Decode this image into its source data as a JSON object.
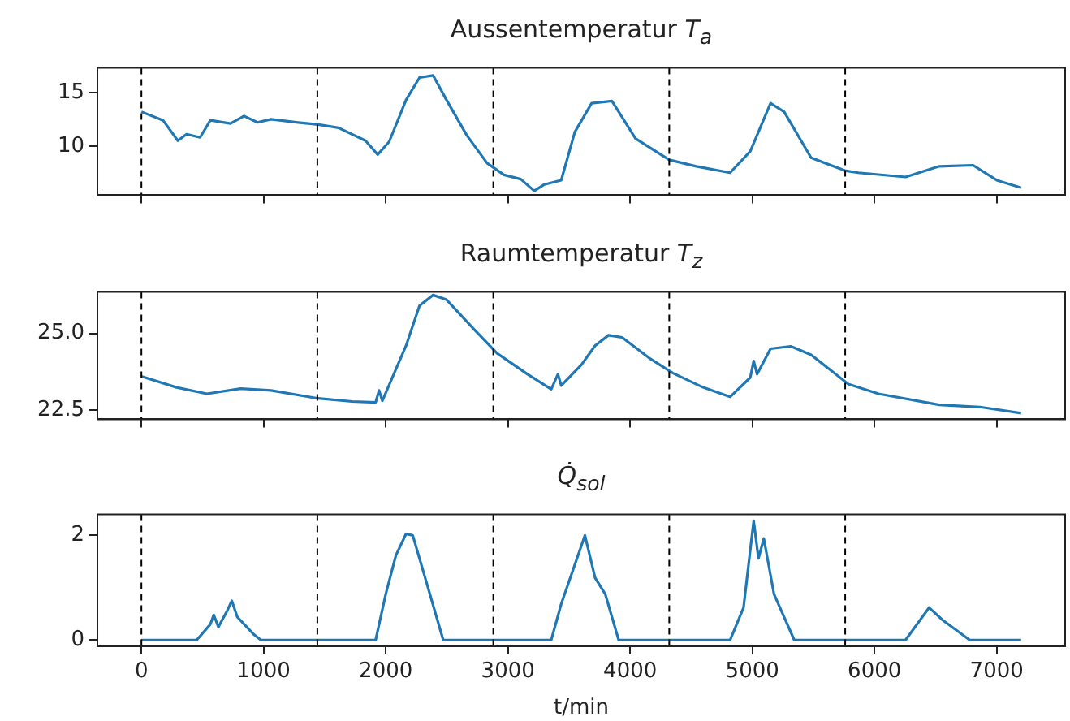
{
  "chart_data": [
    {
      "type": "line",
      "title": "Aussentemperatur T$_{a}$",
      "tick_labels": "y",
      "grid": false,
      "line_style": "solid",
      "xlim": [
        -360,
        7560
      ],
      "xticks": [
        0,
        1000,
        2000,
        3000,
        4000,
        5000,
        6000,
        7000
      ],
      "ylim": [
        5.4,
        17.3
      ],
      "yticks": [
        10,
        15
      ],
      "x": [
        0,
        177,
        298,
        370,
        480,
        564,
        729,
        840,
        950,
        1061,
        1282,
        1448,
        1613,
        1834,
        1934,
        2028,
        2166,
        2276,
        2387,
        2497,
        2663,
        2829,
        2967,
        3105,
        3215,
        3298,
        3436,
        3547,
        3685,
        3851,
        4044,
        4320,
        4541,
        4818,
        4983,
        5149,
        5260,
        5481,
        5757,
        5867,
        6254,
        6530,
        6807,
        7000,
        7200
      ],
      "series": [
        {
          "color": "#1f77b4",
          "values": [
            13.2,
            12.4,
            10.5,
            11.1,
            10.8,
            12.4,
            12.1,
            12.8,
            12.2,
            12.5,
            12.2,
            12.0,
            11.7,
            10.5,
            9.2,
            10.4,
            14.3,
            16.4,
            16.6,
            14.3,
            11.0,
            8.4,
            7.3,
            6.9,
            5.8,
            6.4,
            6.8,
            11.3,
            14.0,
            14.2,
            10.7,
            8.7,
            8.1,
            7.5,
            9.5,
            14.0,
            13.2,
            8.9,
            7.7,
            7.5,
            7.1,
            8.1,
            8.2,
            6.8,
            6.1
          ]
        }
      ],
      "ref_lines": [
        {
          "axis": "x",
          "value": 0,
          "color": "#000000",
          "line_style": "dashed"
        },
        {
          "axis": "x",
          "value": 1440,
          "color": "#000000",
          "line_style": "dashed"
        },
        {
          "axis": "x",
          "value": 2880,
          "color": "#000000",
          "line_style": "dashed"
        },
        {
          "axis": "x",
          "value": 4320,
          "color": "#000000",
          "line_style": "dashed"
        },
        {
          "axis": "x",
          "value": 5760,
          "color": "#000000",
          "line_style": "dashed"
        }
      ]
    },
    {
      "type": "line",
      "title": "Raumtemperatur T$_{z}$",
      "tick_labels": "y",
      "grid": false,
      "line_style": "solid",
      "xlim": [
        -360,
        7560
      ],
      "xticks": [
        0,
        1000,
        2000,
        3000,
        4000,
        5000,
        6000,
        7000
      ],
      "ylim": [
        22.2,
        26.35
      ],
      "yticks": [
        22.5,
        {
          "value": 25,
          "label": "25.0"
        }
      ],
      "x": [
        0,
        287,
        536,
        812,
        1061,
        1448,
        1724,
        1917,
        1945,
        1972,
        2166,
        2276,
        2387,
        2497,
        2718,
        2911,
        3160,
        3354,
        3409,
        3436,
        3602,
        3713,
        3823,
        3934,
        4155,
        4348,
        4597,
        4818,
        4983,
        5011,
        5039,
        5149,
        5315,
        5481,
        5785,
        6033,
        6530,
        6862,
        7200
      ],
      "series": [
        {
          "color": "#1f77b4",
          "values": [
            23.6,
            23.24,
            23.03,
            23.2,
            23.14,
            22.88,
            22.78,
            22.75,
            23.14,
            22.8,
            24.6,
            25.9,
            26.25,
            26.1,
            25.15,
            24.35,
            23.67,
            23.18,
            23.67,
            23.3,
            23.98,
            24.6,
            24.94,
            24.87,
            24.2,
            23.71,
            23.24,
            22.93,
            23.56,
            24.1,
            23.67,
            24.5,
            24.58,
            24.3,
            23.35,
            23.03,
            22.67,
            22.6,
            22.4
          ]
        }
      ],
      "ref_lines": [
        {
          "axis": "x",
          "value": 0,
          "color": "#000000",
          "line_style": "dashed"
        },
        {
          "axis": "x",
          "value": 1440,
          "color": "#000000",
          "line_style": "dashed"
        },
        {
          "axis": "x",
          "value": 2880,
          "color": "#000000",
          "line_style": "dashed"
        },
        {
          "axis": "x",
          "value": 4320,
          "color": "#000000",
          "line_style": "dashed"
        },
        {
          "axis": "x",
          "value": 5760,
          "color": "#000000",
          "line_style": "dashed"
        }
      ]
    },
    {
      "type": "line",
      "title": "Q̇$_{sol}$",
      "xlabel": "t/min",
      "grid": false,
      "line_style": "solid",
      "xlim": [
        -360,
        7560
      ],
      "xticks": [
        0,
        1000,
        2000,
        3000,
        4000,
        5000,
        6000,
        7000
      ],
      "ylim": [
        -0.12,
        2.4
      ],
      "yticks": [
        0,
        2
      ],
      "x": [
        0,
        453,
        564,
        592,
        630,
        702,
        740,
        785,
        923,
        978,
        1917,
        2000,
        2083,
        2166,
        2221,
        2331,
        2470,
        3354,
        3436,
        3547,
        3630,
        3713,
        3796,
        3906,
        4818,
        4928,
        5011,
        5050,
        5094,
        5177,
        5343,
        6254,
        6447,
        6558,
        6779,
        7200
      ],
      "series": [
        {
          "color": "#1f77b4",
          "values": [
            0,
            0,
            0.3,
            0.48,
            0.25,
            0.56,
            0.75,
            0.44,
            0.1,
            0,
            0,
            0.88,
            1.62,
            2.03,
            2.0,
            1.12,
            0,
            0,
            0.69,
            1.44,
            2.0,
            1.19,
            0.88,
            0,
            0,
            0.62,
            2.28,
            1.56,
            1.94,
            0.88,
            0,
            0,
            0.62,
            0.38,
            0,
            0
          ]
        }
      ],
      "ref_lines": [
        {
          "axis": "x",
          "value": 0,
          "color": "#000000",
          "line_style": "dashed"
        },
        {
          "axis": "x",
          "value": 1440,
          "color": "#000000",
          "line_style": "dashed"
        },
        {
          "axis": "x",
          "value": 2880,
          "color": "#000000",
          "line_style": "dashed"
        },
        {
          "axis": "x",
          "value": 4320,
          "color": "#000000",
          "line_style": "dashed"
        },
        {
          "axis": "x",
          "value": 5760,
          "color": "#000000",
          "line_style": "dashed"
        }
      ]
    }
  ]
}
